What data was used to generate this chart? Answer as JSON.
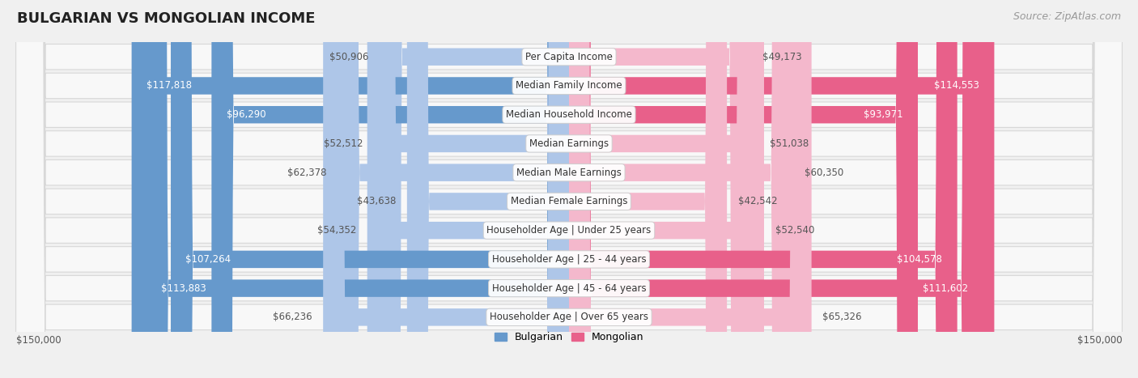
{
  "title": "BULGARIAN VS MONGOLIAN INCOME",
  "source": "Source: ZipAtlas.com",
  "categories": [
    "Per Capita Income",
    "Median Family Income",
    "Median Household Income",
    "Median Earnings",
    "Median Male Earnings",
    "Median Female Earnings",
    "Householder Age | Under 25 years",
    "Householder Age | 25 - 44 years",
    "Householder Age | 45 - 64 years",
    "Householder Age | Over 65 years"
  ],
  "bulgarian_values": [
    50906,
    117818,
    96290,
    52512,
    62378,
    43638,
    54352,
    107264,
    113883,
    66236
  ],
  "mongolian_values": [
    49173,
    114553,
    93971,
    51038,
    60350,
    42542,
    52540,
    104578,
    111602,
    65326
  ],
  "bulgarian_labels": [
    "$50,906",
    "$117,818",
    "$96,290",
    "$52,512",
    "$62,378",
    "$43,638",
    "$54,352",
    "$107,264",
    "$113,883",
    "$66,236"
  ],
  "mongolian_labels": [
    "$49,173",
    "$114,553",
    "$93,971",
    "$51,038",
    "$60,350",
    "$42,542",
    "$52,540",
    "$104,578",
    "$111,602",
    "$65,326"
  ],
  "bulgarian_color_light": "#aec6e8",
  "bulgarian_color_dark": "#6699cc",
  "mongolian_color_light": "#f4b8cc",
  "mongolian_color_dark": "#e8608a",
  "bg_color": "#f0f0f0",
  "row_bg_color": "#f8f8f8",
  "row_edge_color": "#d8d8d8",
  "max_val": 150000,
  "axis_label_left": "$150,000",
  "axis_label_right": "$150,000",
  "legend_bulgarian": "Bulgarian",
  "legend_mongolian": "Mongolian",
  "title_fontsize": 13,
  "source_fontsize": 9,
  "label_fontsize": 8.5,
  "category_fontsize": 8.5,
  "bul_threshold": 70000,
  "mon_threshold": 70000
}
